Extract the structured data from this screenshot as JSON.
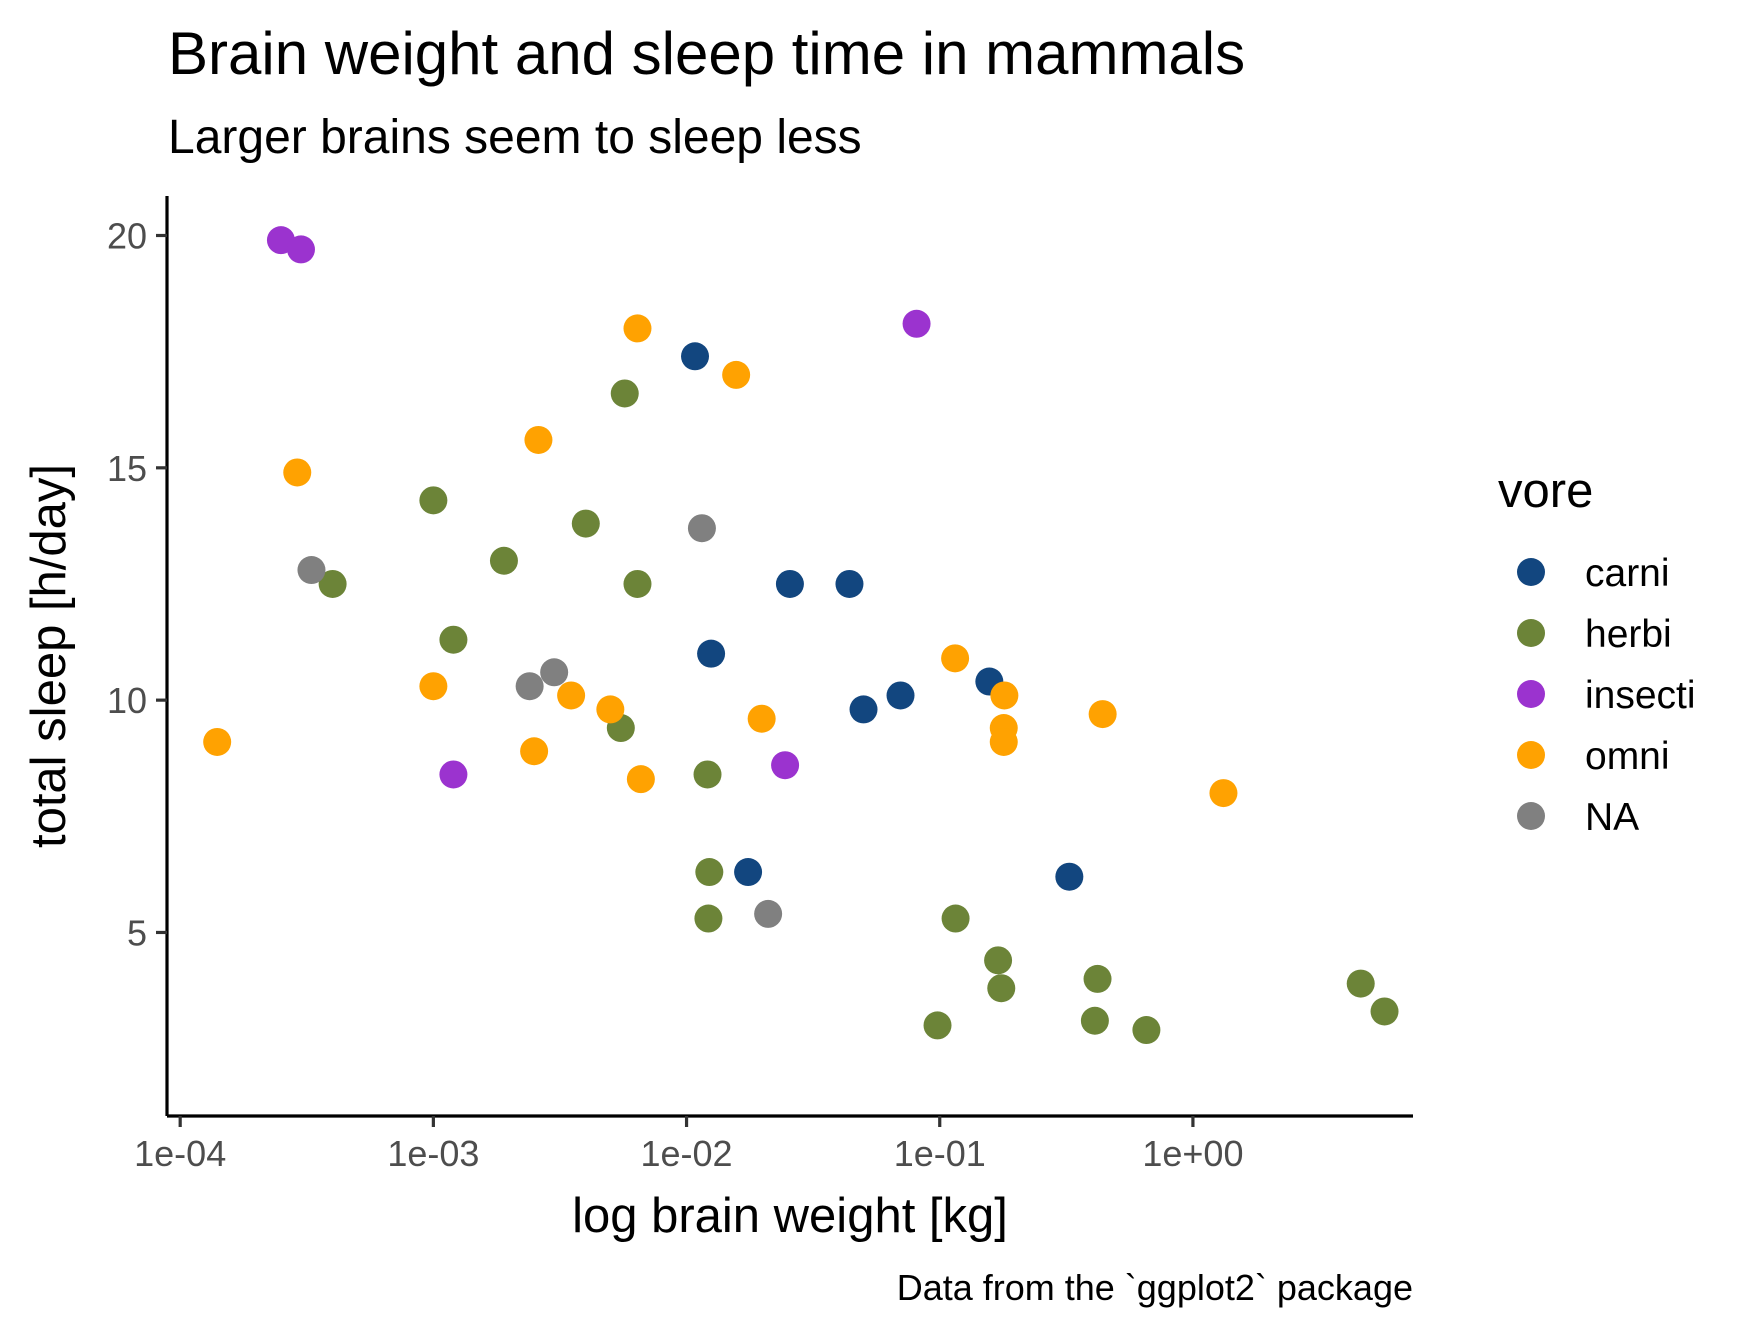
{
  "chart_data": {
    "type": "scatter",
    "title": "Brain weight and sleep time in mammals",
    "subtitle": "Larger brains seem to sleep less",
    "xlabel": "log brain weight [kg]",
    "ylabel": "total sleep [h/day]",
    "caption": "Data from the `ggplot2` package",
    "x_scale": "log10",
    "xlim": [
      8.87e-05,
      7.4
    ],
    "ylim": [
      1.05,
      20.85
    ],
    "x_ticks": [
      {
        "value": 0.0001,
        "label": "1e-04"
      },
      {
        "value": 0.001,
        "label": "1e-03"
      },
      {
        "value": 0.01,
        "label": "1e-02"
      },
      {
        "value": 0.1,
        "label": "1e-01"
      },
      {
        "value": 1,
        "label": "1e+00"
      }
    ],
    "y_ticks": [
      {
        "value": 5,
        "label": "5"
      },
      {
        "value": 10,
        "label": "10"
      },
      {
        "value": 15,
        "label": "15"
      },
      {
        "value": 20,
        "label": "20"
      }
    ],
    "grid": false,
    "legend": {
      "title": "vore",
      "position": "right",
      "entries": [
        {
          "label": "carni",
          "color": "#12467f"
        },
        {
          "label": "herbi",
          "color": "#6c8438"
        },
        {
          "label": "insecti",
          "color": "#9b33cf"
        },
        {
          "label": "omni",
          "color": "#ffa201"
        },
        {
          "label": "NA",
          "color": "#808080"
        }
      ]
    },
    "series": [
      {
        "name": "carni",
        "color": "#12467f",
        "points": [
          {
            "x": 0.0108,
            "y": 17.4
          },
          {
            "x": 0.0125,
            "y": 11.0
          },
          {
            "x": 0.0256,
            "y": 12.5
          },
          {
            "x": 0.044,
            "y": 12.5
          },
          {
            "x": 0.07,
            "y": 10.1
          },
          {
            "x": 0.05,
            "y": 9.8
          },
          {
            "x": 0.157,
            "y": 10.4
          },
          {
            "x": 0.0175,
            "y": 6.3
          },
          {
            "x": 0.325,
            "y": 6.2
          }
        ]
      },
      {
        "name": "herbi",
        "color": "#6c8438",
        "points": [
          {
            "x": 0.0057,
            "y": 16.6
          },
          {
            "x": 0.001,
            "y": 14.3
          },
          {
            "x": 0.004,
            "y": 13.8
          },
          {
            "x": 0.0019,
            "y": 13.0
          },
          {
            "x": 0.0004,
            "y": 12.5
          },
          {
            "x": 0.0064,
            "y": 12.5
          },
          {
            "x": 0.0012,
            "y": 11.3
          },
          {
            "x": 0.0055,
            "y": 9.4
          },
          {
            "x": 0.0121,
            "y": 8.4
          },
          {
            "x": 0.0123,
            "y": 6.3
          },
          {
            "x": 0.0122,
            "y": 5.3
          },
          {
            "x": 0.1155,
            "y": 5.3
          },
          {
            "x": 0.17,
            "y": 4.4
          },
          {
            "x": 0.175,
            "y": 3.8
          },
          {
            "x": 0.42,
            "y": 4.0
          },
          {
            "x": 0.41,
            "y": 3.1
          },
          {
            "x": 0.655,
            "y": 2.9
          },
          {
            "x": 0.098,
            "y": 3.0
          },
          {
            "x": 4.6,
            "y": 3.9
          },
          {
            "x": 5.712,
            "y": 3.3
          }
        ]
      },
      {
        "name": "insecti",
        "color": "#9b33cf",
        "points": [
          {
            "x": 0.00025,
            "y": 19.9
          },
          {
            "x": 0.0003,
            "y": 19.7
          },
          {
            "x": 0.081,
            "y": 18.1
          },
          {
            "x": 0.0012,
            "y": 8.4
          },
          {
            "x": 0.0245,
            "y": 8.6
          }
        ]
      },
      {
        "name": "omni",
        "color": "#ffa201",
        "points": [
          {
            "x": 0.0064,
            "y": 18.0
          },
          {
            "x": 0.0157,
            "y": 17.0
          },
          {
            "x": 0.0026,
            "y": 15.6
          },
          {
            "x": 0.00029,
            "y": 14.9
          },
          {
            "x": 0.001,
            "y": 10.3
          },
          {
            "x": 0.0035,
            "y": 10.1
          },
          {
            "x": 0.005,
            "y": 9.8
          },
          {
            "x": 0.0198,
            "y": 9.6
          },
          {
            "x": 0.00014,
            "y": 9.1
          },
          {
            "x": 0.0025,
            "y": 8.9
          },
          {
            "x": 0.0066,
            "y": 8.3
          },
          {
            "x": 0.115,
            "y": 10.9
          },
          {
            "x": 0.18,
            "y": 10.1
          },
          {
            "x": 0.179,
            "y": 9.4
          },
          {
            "x": 0.179,
            "y": 9.1
          },
          {
            "x": 0.44,
            "y": 9.7
          },
          {
            "x": 1.32,
            "y": 8.0
          }
        ]
      },
      {
        "name": "NA",
        "color": "#808080",
        "points": [
          {
            "x": 0.0115,
            "y": 13.7
          },
          {
            "x": 0.00033,
            "y": 12.8
          },
          {
            "x": 0.003,
            "y": 10.6
          },
          {
            "x": 0.0024,
            "y": 10.3
          },
          {
            "x": 0.021,
            "y": 5.4
          }
        ]
      }
    ]
  }
}
